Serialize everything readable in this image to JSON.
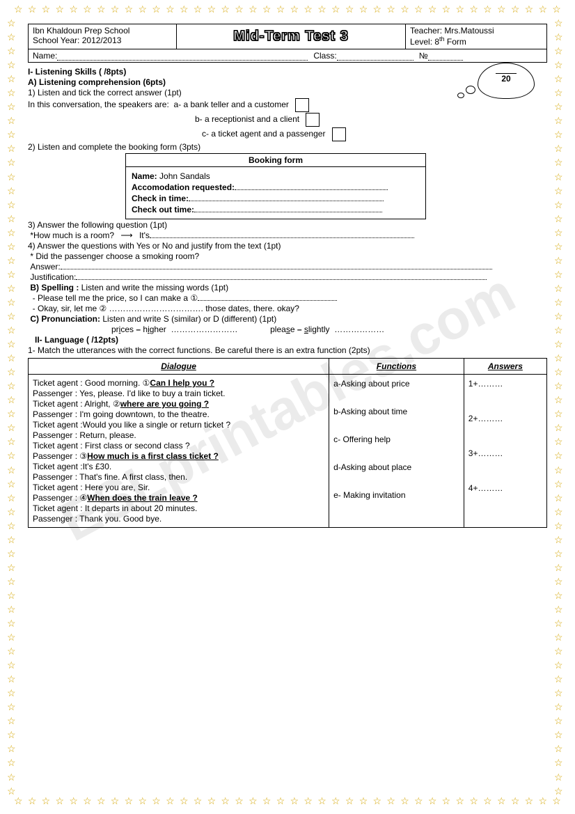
{
  "header": {
    "school": "Ibn Khaldoun Prep School",
    "year": "School Year: 2012/2013",
    "title": "Mid-Term Test 3",
    "teacher": "Teacher: Mrs.Matoussi",
    "level": "Level: 8",
    "level_suffix": "th",
    "level_form": " Form",
    "name_label": "Name:",
    "class_label": "Class:",
    "num_label": "№"
  },
  "score": {
    "total": "20"
  },
  "s1": {
    "title": "I- Listening Skills (      /8pts)",
    "a_title": "A) Listening comprehension (6pts)",
    "q1": "1) Listen and tick the correct answer (1pt)",
    "q1_intro": "In this conversation, the speakers are:",
    "q1a": "a- a bank teller and a customer",
    "q1b": "b- a receptionist and a client",
    "q1c": "c- a ticket agent and a passenger",
    "q2": "2) Listen and complete the booking form (3pts)",
    "booking_title": "Booking form",
    "booking_name_label": "Name:",
    "booking_name_value": "John Sandals",
    "booking_accom": "Accomodation requested:",
    "booking_checkin": "Check in time:",
    "booking_checkout": "Check out time:",
    "q3": "3) Answer the following question (1pt)",
    "q3_text": "*How much is a room?",
    "q3_its": "It's",
    "q4": "4) Answer the questions with Yes or No and justify from the text (1pt)",
    "q4_text": "* Did the passenger choose a smoking room?",
    "q4_answer": "Answer:",
    "q4_just": "Justification:",
    "b_title": "B) Spelling :",
    "b_text": " Listen and write the missing words (1pt)",
    "b_line1": "- Please tell me the price, so I can make a ①",
    "b_line2": "- Okay, sir, let me ② ……………………………. those dates, there. okay?",
    "c_title": "C) Pronunciation:",
    "c_text": " Listen and write S (similar) or D (different) (1pt)",
    "c_pair1a": "pr",
    "c_pair1a_u": "i",
    "c_pair1a_end": "ces",
    "c_pair1b": "h",
    "c_pair1b_u": "i",
    "c_pair1b_end": "gher",
    "c_pair2a": "plea",
    "c_pair2a_u": "s",
    "c_pair2a_end": "e",
    "c_pair2b_u": "s",
    "c_pair2b_end": "lightly"
  },
  "s2": {
    "title": "II- Language (     /12pts)",
    "q1": "1- Match the utterances with the correct functions. Be careful there is an extra function    (2pts)",
    "th_dialogue": "Dialogue",
    "th_functions": "Functions",
    "th_answers": "Answers",
    "dialogue": [
      "Ticket agent : Good morning. ①",
      "Passenger : Yes, please. I'd like to buy a train ticket.",
      "Ticket agent : Alright, ②",
      "Passenger : I'm going downtown, to the theatre.",
      "Ticket agent :Would you like a single or return ticket ?",
      "Passenger : Return, please.",
      "Ticket agent : First class or second class ?",
      "Passenger : ③",
      "Ticket agent :It's £30.",
      "Passenger : That's fine. A first class, then.",
      "Ticket agent : Here you are, Sir.",
      "Passenger : ④",
      "Ticket agent : It departs in about 20 minutes.",
      "Passenger : Thank you. Good bye."
    ],
    "dialogue_bold": {
      "0": "Can I help you ?",
      "2": "where are you going ?",
      "7": "How much is a first class ticket ?",
      "11": "When does the train leave ?"
    },
    "functions": [
      "a-Asking about price",
      "b-Asking about time",
      "c- Offering help",
      "d-Asking about  place",
      "e- Making invitation"
    ],
    "answers": [
      "1+………",
      "2+………",
      "3+………",
      "4+………"
    ]
  },
  "watermark": "ESLprintables.com"
}
